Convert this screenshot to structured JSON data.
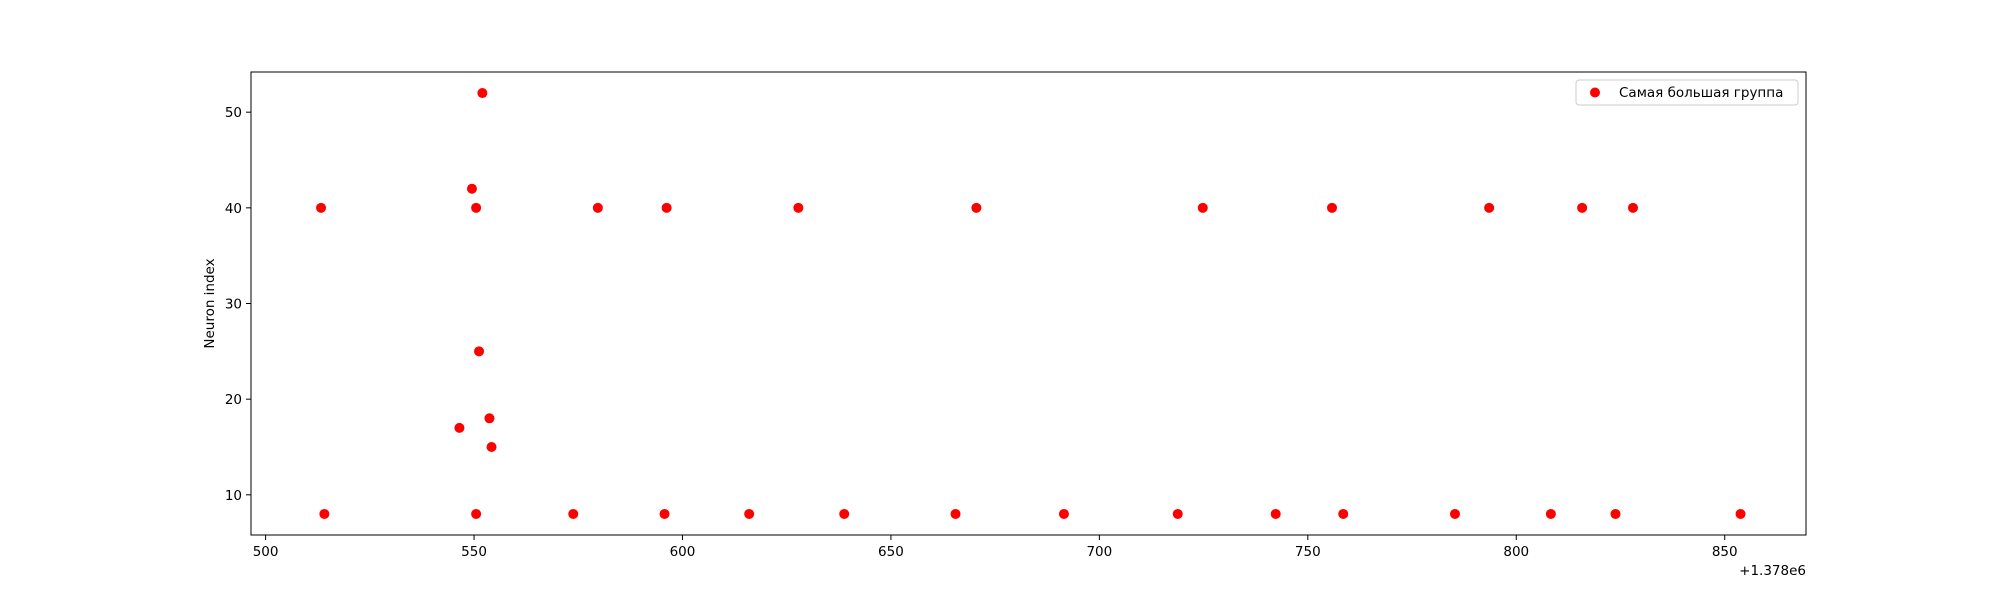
{
  "chart_data": {
    "type": "scatter",
    "title": "",
    "xlabel": "",
    "ylabel": "Neuron index",
    "x_offset_label": "+1.378e6",
    "xlim": [
      496.5,
      869.5
    ],
    "ylim": [
      5.8,
      54.2
    ],
    "xticks": [
      500,
      550,
      600,
      650,
      700,
      750,
      800,
      850
    ],
    "yticks": [
      10,
      20,
      30,
      40,
      50
    ],
    "grid": false,
    "legend_position": "top-right",
    "series": [
      {
        "name": "Самая большая группа",
        "color": "#ff0000",
        "points": [
          {
            "x": 513.3,
            "y": 40
          },
          {
            "x": 514.1,
            "y": 8
          },
          {
            "x": 546.5,
            "y": 17
          },
          {
            "x": 549.5,
            "y": 42
          },
          {
            "x": 550.5,
            "y": 40
          },
          {
            "x": 550.5,
            "y": 8
          },
          {
            "x": 551.2,
            "y": 25
          },
          {
            "x": 552.0,
            "y": 52
          },
          {
            "x": 553.7,
            "y": 18
          },
          {
            "x": 554.2,
            "y": 15
          },
          {
            "x": 573.8,
            "y": 8
          },
          {
            "x": 579.7,
            "y": 40
          },
          {
            "x": 595.7,
            "y": 8
          },
          {
            "x": 596.2,
            "y": 40
          },
          {
            "x": 616.0,
            "y": 8
          },
          {
            "x": 627.8,
            "y": 40
          },
          {
            "x": 638.8,
            "y": 8
          },
          {
            "x": 665.5,
            "y": 8
          },
          {
            "x": 670.5,
            "y": 40
          },
          {
            "x": 691.5,
            "y": 8
          },
          {
            "x": 718.8,
            "y": 8
          },
          {
            "x": 724.8,
            "y": 40
          },
          {
            "x": 742.3,
            "y": 8
          },
          {
            "x": 755.8,
            "y": 40
          },
          {
            "x": 758.5,
            "y": 8
          },
          {
            "x": 785.3,
            "y": 8
          },
          {
            "x": 793.5,
            "y": 40
          },
          {
            "x": 808.3,
            "y": 8
          },
          {
            "x": 815.8,
            "y": 40
          },
          {
            "x": 823.8,
            "y": 8
          },
          {
            "x": 828.0,
            "y": 40
          },
          {
            "x": 853.8,
            "y": 8
          }
        ]
      }
    ]
  }
}
